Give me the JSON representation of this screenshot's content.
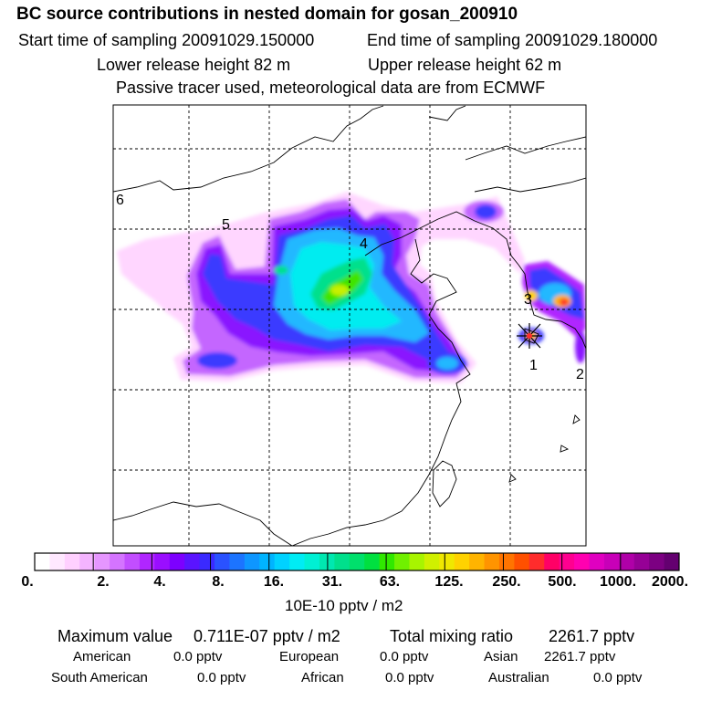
{
  "header": {
    "title": "BC  source contributions in nested domain for gosan_200910",
    "start_time": "Start time of sampling 20091029.150000",
    "end_time": "End time of sampling 20091029.180000",
    "lower_release": "Lower release height   82 m",
    "upper_release": "Upper release height   62 m",
    "tracer_note": "Passive tracer used, meteorological data are from ECMWF"
  },
  "map": {
    "region_labels": [
      "1",
      "2",
      "3",
      "4",
      "5",
      "6"
    ],
    "receptor_marker": "star-icon"
  },
  "colorbar": {
    "ticks": [
      "0.",
      "2.",
      "4.",
      "8.",
      "16.",
      "31.",
      "63.",
      "125.",
      "250.",
      "500.",
      "1000.",
      "2000."
    ],
    "units": "10E-10 pptv / m2",
    "colors": [
      "#ffffff",
      "#ffe8ff",
      "#ffd0ff",
      "#f4b4ff",
      "#e696ff",
      "#d474ff",
      "#c24eff",
      "#b026ff",
      "#9a0eff",
      "#7d00ff",
      "#5a14ff",
      "#3a2aff",
      "#2a52ff",
      "#1c74ff",
      "#0e96ff",
      "#00b4ff",
      "#00d2ff",
      "#00ecf4",
      "#00f0d4",
      "#00e8b0",
      "#00e08c",
      "#00e06c",
      "#00e040",
      "#30e800",
      "#70f000",
      "#a8f400",
      "#d0f000",
      "#f0e800",
      "#ffd200",
      "#ffb400",
      "#ff9400",
      "#ff7400",
      "#ff5000",
      "#ff2c2c",
      "#ff0066",
      "#ff0090",
      "#ff00b0",
      "#e000c0",
      "#c800b8",
      "#b000a8",
      "#960096",
      "#7c0082",
      "#640070"
    ]
  },
  "stats": {
    "max_label": "Maximum value",
    "max_value": "0.711E-07 pptv / m2",
    "total_label": "Total mixing ratio",
    "total_value": "2261.7 pptv",
    "regions": [
      {
        "name": "American",
        "value": "0.0 pptv"
      },
      {
        "name": "European",
        "value": "0.0 pptv"
      },
      {
        "name": "Asian",
        "value": "2261.7 pptv"
      },
      {
        "name": "South American",
        "value": "0.0 pptv"
      },
      {
        "name": "African",
        "value": "0.0 pptv"
      },
      {
        "name": "Australian",
        "value": "0.0 pptv"
      }
    ]
  }
}
